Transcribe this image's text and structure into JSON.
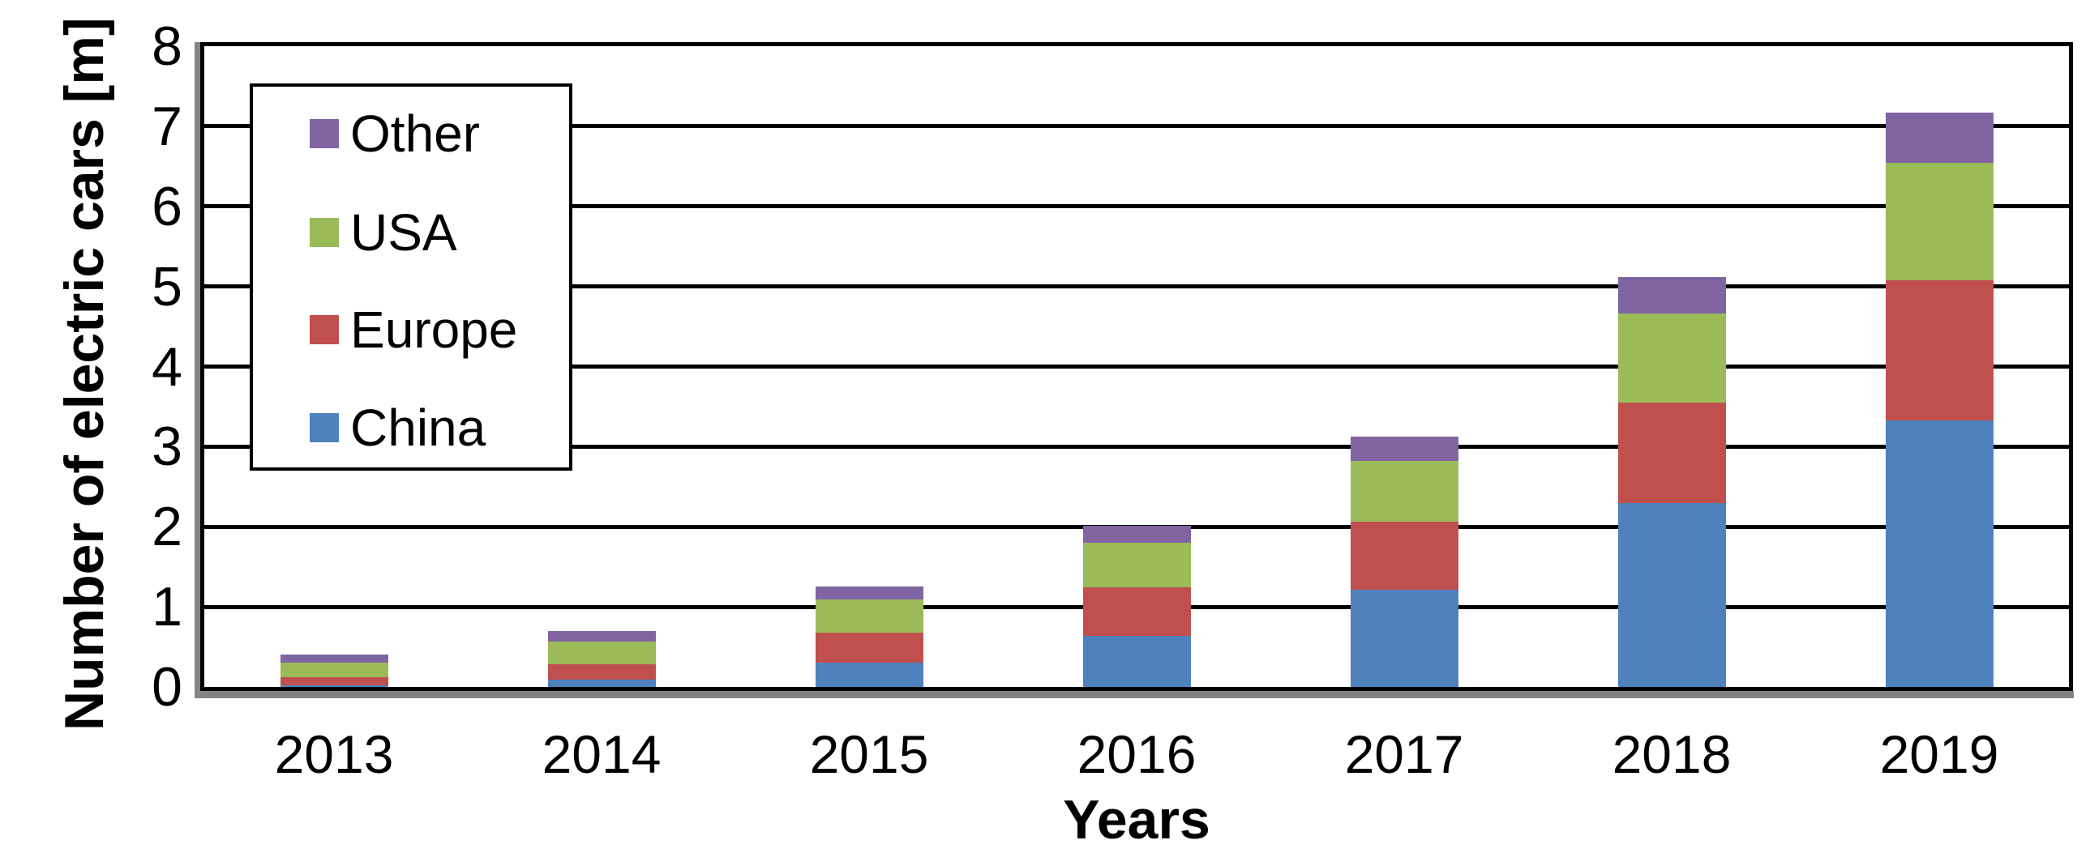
{
  "chart_data": {
    "type": "bar",
    "stacked": true,
    "xlabel": "Years",
    "ylabel": "Number of electric cars [m]",
    "categories": [
      "2013",
      "2014",
      "2015",
      "2016",
      "2017",
      "2018",
      "2019"
    ],
    "series": [
      {
        "name": "China",
        "color": "#4F81BD",
        "values": [
          0.02,
          0.09,
          0.3,
          0.64,
          1.21,
          2.3,
          3.33
        ]
      },
      {
        "name": "Europe",
        "color": "#C0504D",
        "values": [
          0.1,
          0.19,
          0.38,
          0.6,
          0.85,
          1.25,
          1.75
        ]
      },
      {
        "name": "USA",
        "color": "#9BBB59",
        "values": [
          0.18,
          0.29,
          0.41,
          0.56,
          0.76,
          1.11,
          1.46
        ]
      },
      {
        "name": "Other",
        "color": "#8064A2",
        "values": [
          0.1,
          0.13,
          0.16,
          0.21,
          0.31,
          0.46,
          0.63
        ]
      }
    ],
    "totals": [
      0.4,
      0.7,
      1.25,
      2.01,
      3.13,
      5.12,
      7.17
    ],
    "ylim": [
      0,
      8
    ],
    "yticks": [
      0,
      1,
      2,
      3,
      4,
      5,
      6,
      7,
      8
    ],
    "grid": true,
    "legend": {
      "position": "top-left",
      "order": [
        "Other",
        "USA",
        "Europe",
        "China"
      ]
    }
  },
  "colors": {
    "axis_line": "#848484",
    "gridline": "#000000",
    "plot_border": "#000000",
    "background": "#FFFFFF",
    "text": "#000000"
  }
}
